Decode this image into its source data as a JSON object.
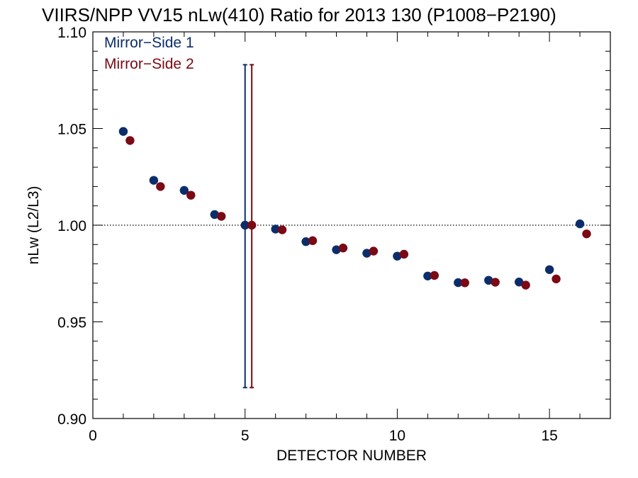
{
  "chart_data": {
    "type": "scatter",
    "title": "VIIRS/NPP VV15 nLw(410) Ratio for 2013 130 (P1008−P2190)",
    "xlabel": "DETECTOR NUMBER",
    "ylabel": "nLw (L2/L3)",
    "xlim": [
      0,
      17
    ],
    "ylim": [
      0.9,
      1.1
    ],
    "x_ticks": [
      0,
      5,
      10,
      15
    ],
    "x_tick_labels": [
      "0",
      "5",
      "10",
      "15"
    ],
    "y_ticks": [
      0.9,
      0.95,
      1.0,
      1.05,
      1.1
    ],
    "y_tick_labels": [
      "0.90",
      "0.95",
      "1.00",
      "1.05",
      "1.10"
    ],
    "reference_line": {
      "y": 1.0,
      "style": "dotted"
    },
    "legend_position": "top-left",
    "series": [
      {
        "name": "Mirror−Side 1",
        "color": "#0b2d6b",
        "x": [
          1,
          2,
          3,
          4,
          5,
          6,
          7,
          8,
          9,
          10,
          11,
          12,
          13,
          14,
          15,
          16
        ],
        "values": [
          1.0485,
          1.0232,
          1.018,
          1.0055,
          1.0,
          0.998,
          0.9915,
          0.9873,
          0.9855,
          0.984,
          0.9737,
          0.9703,
          0.9715,
          0.9706,
          0.977,
          1.0007
        ],
        "errorbar": {
          "x": 5,
          "low": 0.916,
          "high": 1.083
        }
      },
      {
        "name": "Mirror−Side 2",
        "color": "#7a0a14",
        "x": [
          1,
          2,
          3,
          4,
          5,
          6,
          7,
          8,
          9,
          10,
          11,
          12,
          13,
          14,
          15,
          16
        ],
        "values": [
          1.0438,
          1.02,
          1.0155,
          1.0046,
          1.0,
          0.9976,
          0.992,
          0.9882,
          0.9866,
          0.985,
          0.974,
          0.9702,
          0.9705,
          0.969,
          0.9722,
          0.9955
        ],
        "errorbar": {
          "x": 5,
          "low": 0.916,
          "high": 1.083
        }
      }
    ]
  }
}
